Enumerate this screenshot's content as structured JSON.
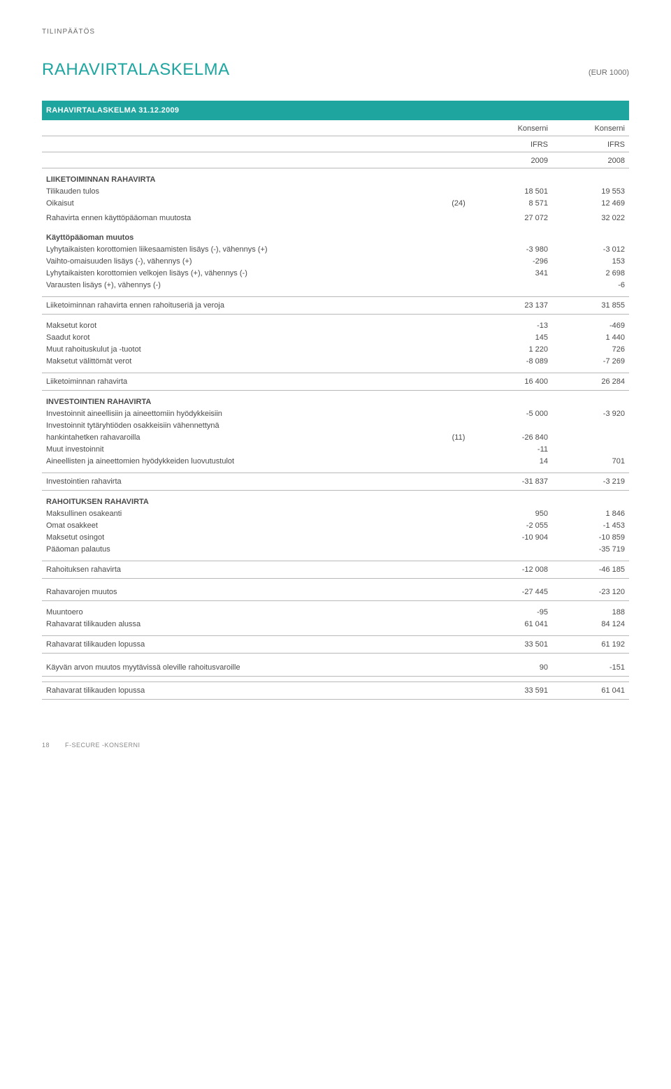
{
  "page_label": "TILINPÄÄTÖS",
  "title": "RAHAVIRTALASKELMA",
  "currency_note": "(EUR 1000)",
  "header_band": "RAHAVIRTALASKELMA 31.12.2009",
  "col_headers": {
    "c1_a": "Konserni",
    "c1_b": "IFRS",
    "c1_c": "2009",
    "c2_a": "Konserni",
    "c2_b": "IFRS",
    "c2_c": "2008"
  },
  "rows": [
    {
      "type": "section",
      "label": "LIIKETOIMINNAN RAHAVIRTA"
    },
    {
      "label": "Tilikauden tulos",
      "note": "",
      "v1": "18 501",
      "v2": "19 553"
    },
    {
      "label": "Oikaisut",
      "note": "(24)",
      "v1": "8 571",
      "v2": "12 469"
    },
    {
      "label": "Rahavirta ennen käyttöpääoman muutosta",
      "v1": "27 072",
      "v2": "32 022",
      "sum": true
    },
    {
      "type": "section",
      "label": "Käyttöpääoman muutos"
    },
    {
      "label": "Lyhytaikaisten korottomien liikesaamisten lisäys (-), vähennys (+)",
      "v1": "-3 980",
      "v2": "-3 012"
    },
    {
      "label": "Vaihto-omaisuuden lisäys (-), vähennys (+)",
      "v1": "-296",
      "v2": "153"
    },
    {
      "label": "Lyhytaikaisten korottomien velkojen lisäys (+), vähennys (-)",
      "v1": "341",
      "v2": "2 698"
    },
    {
      "label": "Varausten lisäys (+), vähennys (-)",
      "v1": "",
      "v2": "-6"
    },
    {
      "type": "gap"
    },
    {
      "label": "Liiketoiminnan rahavirta ennen rahoituseriä ja veroja",
      "v1": "23 137",
      "v2": "31 855",
      "sum": true,
      "rule": "both"
    },
    {
      "type": "gap"
    },
    {
      "label": "Maksetut korot",
      "v1": "-13",
      "v2": "-469"
    },
    {
      "label": "Saadut korot",
      "v1": "145",
      "v2": "1 440"
    },
    {
      "label": "Muut rahoituskulut ja -tuotot",
      "v1": "1 220",
      "v2": "726"
    },
    {
      "label": "Maksetut välittömät verot",
      "v1": "-8 089",
      "v2": "-7 269"
    },
    {
      "type": "gap"
    },
    {
      "label": "Liiketoiminnan rahavirta",
      "v1": "16 400",
      "v2": "26 284",
      "sum": true,
      "rule": "both"
    },
    {
      "type": "section",
      "label": "INVESTOINTIEN RAHAVIRTA"
    },
    {
      "label": "Investoinnit aineellisiin ja aineettomiin hyödykkeisiin",
      "v1": "-5 000",
      "v2": "-3 920"
    },
    {
      "label": "Investoinnit tytäryhtiöden osakkeisiin vähennettynä",
      "v1": "",
      "v2": ""
    },
    {
      "label": "hankintahetken rahavaroilla",
      "note": "(11)",
      "v1": "-26 840",
      "v2": ""
    },
    {
      "label": "Muut investoinnit",
      "v1": "-11",
      "v2": ""
    },
    {
      "label": "Aineellisten ja aineettomien hyödykkeiden luovutustulot",
      "v1": "14",
      "v2": "701"
    },
    {
      "type": "gap"
    },
    {
      "label": "Investointien rahavirta",
      "v1": "-31 837",
      "v2": "-3 219",
      "sum": true,
      "rule": "both"
    },
    {
      "type": "section",
      "label": "RAHOITUKSEN RAHAVIRTA"
    },
    {
      "label": "Maksullinen osakeanti",
      "v1": "950",
      "v2": "1 846"
    },
    {
      "label": "Omat osakkeet",
      "v1": "-2 055",
      "v2": "-1 453"
    },
    {
      "label": "Maksetut osingot",
      "v1": "-10 904",
      "v2": "-10 859"
    },
    {
      "label": "Pääoman palautus",
      "v1": "",
      "v2": "-35 719"
    },
    {
      "type": "gap"
    },
    {
      "label": "Rahoituksen rahavirta",
      "v1": "-12 008",
      "v2": "-46 185",
      "sum": true,
      "rule": "both"
    },
    {
      "type": "gap"
    },
    {
      "label": "Rahavarojen muutos",
      "v1": "-27 445",
      "v2": "-23 120",
      "sum": true,
      "rule": "bottom"
    },
    {
      "type": "gap"
    },
    {
      "label": "Muuntoero",
      "v1": "-95",
      "v2": "188"
    },
    {
      "label": "Rahavarat tilikauden alussa",
      "v1": "61 041",
      "v2": "84 124"
    },
    {
      "type": "gap"
    },
    {
      "label": "Rahavarat tilikauden lopussa",
      "v1": "33 501",
      "v2": "61 192",
      "sum": true,
      "rule": "both"
    },
    {
      "type": "gap"
    },
    {
      "label": "Käyvän arvon muutos myytävissä oleville rahoitusvaroille",
      "v1": "90",
      "v2": "-151",
      "sum": true,
      "rule": "bottom"
    },
    {
      "type": "gap"
    },
    {
      "label": "Rahavarat tilikauden lopussa",
      "v1": "33 591",
      "v2": "61 041",
      "sum": true,
      "rule": "both"
    }
  ],
  "footer": {
    "page": "18",
    "text": "F-SECURE -KONSERNI"
  },
  "style": {
    "accent": "#1ea5a0",
    "text": "#4a4a4a",
    "rule": "#b8b8b8",
    "background": "#ffffff",
    "col_widths": {
      "label": "auto",
      "note": "48px",
      "v1": "110px",
      "v2": "110px"
    }
  }
}
